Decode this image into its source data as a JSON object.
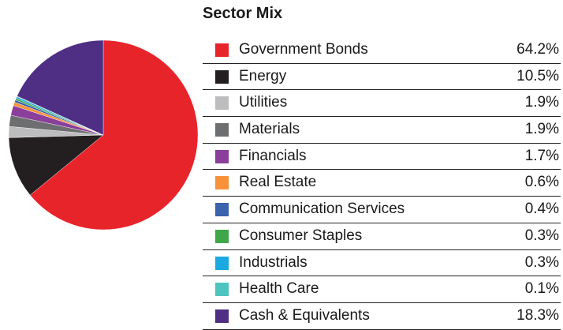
{
  "chart_data": {
    "type": "pie",
    "title": "Sector Mix",
    "slices": [
      {
        "label": "Government Bonds",
        "value": 64.2,
        "display": "64.2%",
        "color": "#e8242b"
      },
      {
        "label": "Energy",
        "value": 10.5,
        "display": "10.5%",
        "color": "#231f20"
      },
      {
        "label": "Utilities",
        "value": 1.9,
        "display": "1.9%",
        "color": "#bdbdbf"
      },
      {
        "label": "Materials",
        "value": 1.9,
        "display": "1.9%",
        "color": "#6d6e70"
      },
      {
        "label": "Financials",
        "value": 1.7,
        "display": "1.7%",
        "color": "#8a3f9a"
      },
      {
        "label": "Real Estate",
        "value": 0.6,
        "display": "0.6%",
        "color": "#f7923a"
      },
      {
        "label": "Communication Services",
        "value": 0.4,
        "display": "0.4%",
        "color": "#3a62ad"
      },
      {
        "label": "Consumer Staples",
        "value": 0.3,
        "display": "0.3%",
        "color": "#3fa74a"
      },
      {
        "label": "Industrials",
        "value": 0.3,
        "display": "0.3%",
        "color": "#1ba9e1"
      },
      {
        "label": "Health Care",
        "value": 0.1,
        "display": "0.1%",
        "color": "#4dc4bd"
      },
      {
        "label": "Cash & Equivalents",
        "value": 18.3,
        "display": "18.3%",
        "color": "#4e2f84"
      }
    ]
  }
}
